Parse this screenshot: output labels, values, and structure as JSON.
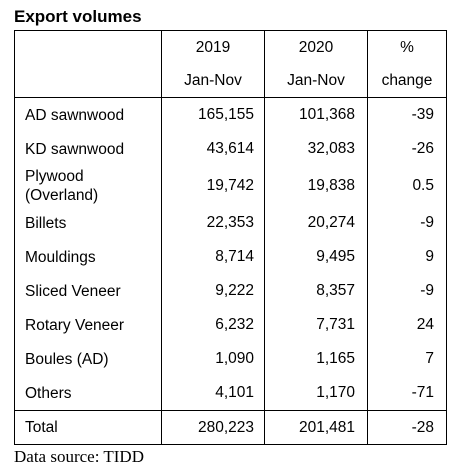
{
  "title": "Export volumes",
  "header": {
    "col_2019_year": "2019",
    "col_2019_period": "Jan-Nov",
    "col_2020_year": "2020",
    "col_2020_period": "Jan-Nov",
    "col_pct_symbol": "%",
    "col_pct_label": "change"
  },
  "rows": [
    {
      "label": "AD sawnwood",
      "v2019": "165,155",
      "v2020": "101,368",
      "change": "-39"
    },
    {
      "label": "KD sawnwood",
      "v2019": "43,614",
      "v2020": "32,083",
      "change": "-26"
    },
    {
      "label_line1": "Plywood",
      "label_line2": "(Overland)",
      "v2019": "19,742",
      "v2020": "19,838",
      "change": "0.5"
    },
    {
      "label": "Billets",
      "v2019": "22,353",
      "v2020": "20,274",
      "change": "-9"
    },
    {
      "label": "Mouldings",
      "v2019": "8,714",
      "v2020": "9,495",
      "change": "9"
    },
    {
      "label": "Sliced Veneer",
      "v2019": "9,222",
      "v2020": "8,357",
      "change": "-9"
    },
    {
      "label": "Rotary Veneer",
      "v2019": "6,232",
      "v2020": "7,731",
      "change": "24"
    },
    {
      "label": "Boules (AD)",
      "v2019": "1,090",
      "v2020": "1,165",
      "change": "7"
    },
    {
      "label": "Others",
      "v2019": "4,101",
      "v2020": "1,170",
      "change": "-71"
    }
  ],
  "total": {
    "label": "Total",
    "v2019": "280,223",
    "v2020": "201,481",
    "change": "-28"
  },
  "source": "Data source: TIDD"
}
